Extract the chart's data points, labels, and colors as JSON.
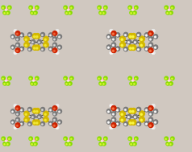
{
  "background_color": "#d0c8c0",
  "figsize": [
    2.38,
    1.89
  ],
  "dpi": 100,
  "atom_colors": {
    "C": "#7a7a7a",
    "S": "#d4b800",
    "O": "#cc2200",
    "F": "#88dd00",
    "B": "#ffb0c8",
    "H": "#e8e8e8"
  },
  "C_r": 2.5,
  "S_r": 3.2,
  "O_r": 2.8,
  "F_r": 2.6,
  "B_r": 3.0,
  "H_r": 1.8,
  "bond_color": "#444444",
  "bond_lw": 0.7
}
